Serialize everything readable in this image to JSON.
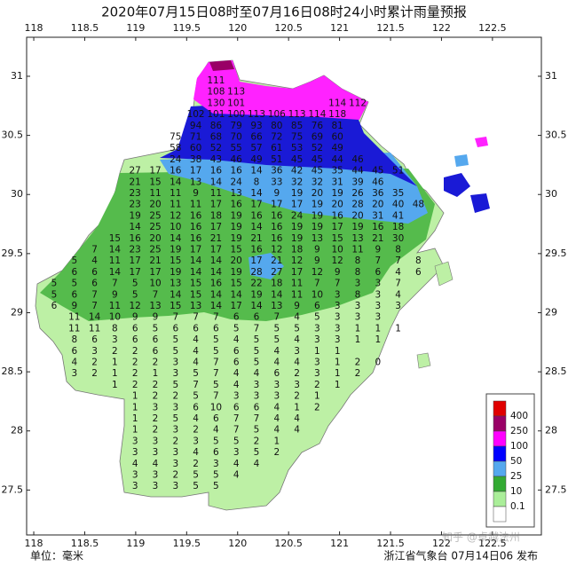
{
  "title": "2020年07月15日08时至07月16日08时24小时累计雨量预报",
  "unit_label": "单位：毫米",
  "issuer": "浙江省气象台 07月14日06 发布",
  "watermark": "知乎 @卓越法州",
  "lon_ticks": [
    118,
    118.5,
    119,
    119.5,
    120,
    120.5,
    121,
    121.5,
    122,
    122.5
  ],
  "lat_ticks": [
    27.5,
    28,
    28.5,
    29,
    29.5,
    30,
    30.5,
    31
  ],
  "xlim": [
    117.93,
    122.98
  ],
  "ylim": [
    27.12,
    31.33
  ],
  "legend": {
    "labels": [
      400,
      250,
      100,
      50,
      25,
      10,
      0.1
    ],
    "colors": [
      "#e00000",
      "#990066",
      "#ff00ff",
      "#0000ff",
      "#55a8ee",
      "#33aa33",
      "#aaee99",
      "#ffffff"
    ]
  },
  "rainfall_grid": {
    "rows": [
      [
        null,
        null,
        null,
        null,
        null,
        null,
        null,
        null,
        111
      ],
      [
        null,
        null,
        null,
        null,
        null,
        null,
        null,
        null,
        108,
        113
      ],
      [
        null,
        null,
        null,
        null,
        null,
        null,
        null,
        null,
        130,
        101,
        null,
        null,
        null,
        null,
        114,
        112
      ],
      [
        null,
        null,
        null,
        null,
        null,
        null,
        null,
        102,
        101,
        100,
        113,
        106,
        113,
        114,
        118
      ],
      [
        null,
        null,
        null,
        null,
        null,
        null,
        null,
        94,
        86,
        79,
        93,
        80,
        85,
        76,
        81
      ],
      [
        null,
        null,
        null,
        null,
        null,
        null,
        75,
        71,
        68,
        70,
        66,
        72,
        75,
        69,
        60
      ],
      [
        null,
        null,
        null,
        null,
        null,
        null,
        58,
        60,
        52,
        55,
        57,
        61,
        53,
        52,
        49
      ],
      [
        null,
        null,
        null,
        null,
        null,
        null,
        24,
        38,
        43,
        46,
        49,
        51,
        45,
        45,
        44,
        46
      ],
      [
        null,
        null,
        null,
        null,
        27,
        17,
        16,
        17,
        16,
        16,
        14,
        36,
        42,
        45,
        35,
        44,
        45,
        51
      ],
      [
        null,
        null,
        null,
        null,
        21,
        15,
        14,
        13,
        14,
        24,
        8,
        33,
        32,
        32,
        31,
        39,
        46
      ],
      [
        null,
        null,
        null,
        null,
        23,
        11,
        11,
        9,
        11,
        13,
        14,
        9,
        19,
        20,
        19,
        26,
        36,
        35
      ],
      [
        null,
        null,
        null,
        null,
        23,
        20,
        11,
        11,
        17,
        16,
        17,
        17,
        17,
        19,
        20,
        28,
        20,
        40,
        48
      ],
      [
        null,
        null,
        null,
        null,
        19,
        25,
        12,
        16,
        18,
        19,
        16,
        16,
        24,
        19,
        16,
        20,
        31,
        41
      ],
      [
        null,
        null,
        null,
        null,
        14,
        25,
        10,
        16,
        17,
        19,
        14,
        16,
        19,
        19,
        17,
        19,
        16,
        18
      ],
      [
        null,
        null,
        null,
        15,
        16,
        20,
        14,
        16,
        21,
        19,
        21,
        16,
        19,
        13,
        15,
        13,
        21,
        30
      ],
      [
        null,
        null,
        7,
        14,
        23,
        25,
        19,
        17,
        17,
        15,
        16,
        12,
        18,
        9,
        10,
        11,
        9,
        8
      ],
      [
        null,
        5,
        4,
        11,
        17,
        21,
        15,
        14,
        14,
        20,
        17,
        21,
        12,
        9,
        12,
        8,
        7,
        7,
        8
      ],
      [
        null,
        6,
        6,
        14,
        17,
        17,
        19,
        14,
        14,
        19,
        28,
        27,
        17,
        12,
        9,
        8,
        6,
        4,
        6
      ],
      [
        5,
        5,
        6,
        7,
        5,
        10,
        13,
        15,
        16,
        15,
        22,
        18,
        11,
        7,
        7,
        3,
        3,
        7
      ],
      [
        5,
        6,
        7,
        9,
        5,
        7,
        14,
        15,
        14,
        14,
        19,
        14,
        11,
        10,
        3,
        8,
        3,
        4
      ],
      [
        6,
        9,
        7,
        11,
        12,
        13,
        15,
        13,
        14,
        17,
        14,
        13,
        9,
        6,
        3,
        3,
        3,
        3
      ],
      [
        null,
        11,
        14,
        10,
        9,
        9,
        7,
        7,
        7,
        6,
        6,
        7,
        4,
        5,
        3,
        3,
        3
      ],
      [
        null,
        11,
        11,
        8,
        6,
        5,
        6,
        6,
        6,
        5,
        7,
        5,
        5,
        3,
        3,
        1,
        1,
        1
      ],
      [
        null,
        8,
        6,
        3,
        6,
        6,
        5,
        4,
        5,
        4,
        5,
        5,
        4,
        3,
        3,
        1,
        1
      ],
      [
        null,
        6,
        3,
        2,
        2,
        6,
        5,
        4,
        5,
        6,
        5,
        4,
        3,
        1,
        1
      ],
      [
        null,
        4,
        2,
        1,
        2,
        2,
        3,
        4,
        7,
        6,
        5,
        4,
        4,
        3,
        1,
        2,
        0
      ],
      [
        null,
        3,
        2,
        1,
        2,
        1,
        3,
        5,
        7,
        4,
        4,
        6,
        2,
        3,
        1,
        2
      ],
      [
        null,
        null,
        null,
        1,
        2,
        2,
        5,
        7,
        5,
        4,
        3,
        3,
        3,
        2,
        1
      ],
      [
        null,
        null,
        null,
        null,
        1,
        2,
        2,
        5,
        7,
        3,
        3,
        3,
        2,
        1
      ],
      [
        null,
        null,
        null,
        null,
        1,
        3,
        3,
        6,
        10,
        6,
        6,
        4,
        1,
        2
      ],
      [
        null,
        null,
        null,
        null,
        1,
        2,
        5,
        4,
        6,
        7,
        7,
        4,
        4
      ],
      [
        null,
        null,
        null,
        null,
        1,
        2,
        3,
        2,
        4,
        7,
        5,
        4,
        4
      ],
      [
        null,
        null,
        null,
        null,
        3,
        3,
        2,
        3,
        5,
        5,
        2,
        1
      ],
      [
        null,
        null,
        null,
        null,
        3,
        3,
        3,
        4,
        6,
        3,
        5,
        2
      ],
      [
        null,
        null,
        null,
        null,
        4,
        4,
        3,
        2,
        3,
        4,
        4
      ],
      [
        null,
        null,
        null,
        null,
        3,
        3,
        2,
        5,
        5,
        4
      ],
      [
        null,
        null,
        null,
        null,
        3,
        3,
        3,
        5,
        5
      ]
    ]
  }
}
